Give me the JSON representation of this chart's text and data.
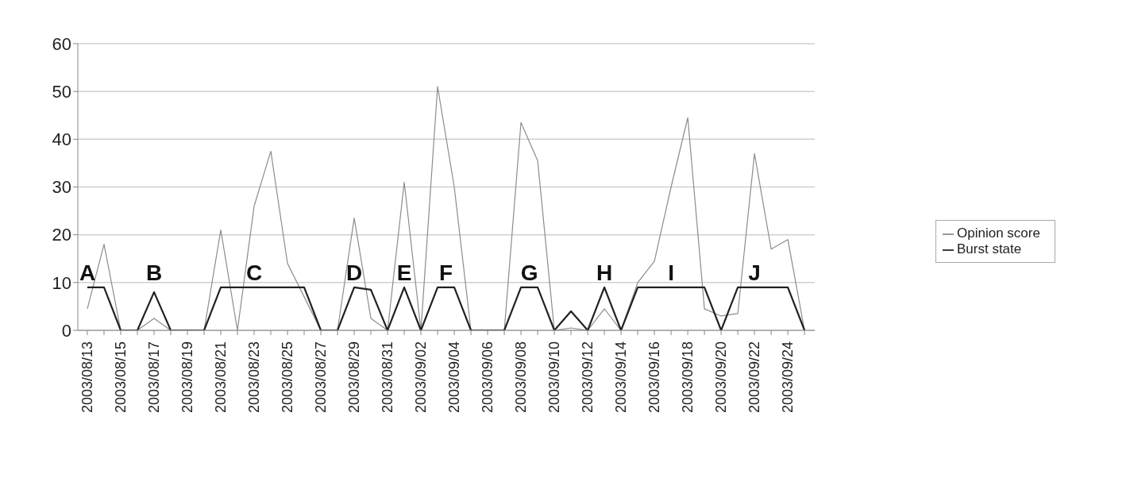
{
  "chart_data": {
    "type": "line",
    "categories": [
      "2003/08/13",
      null,
      "2003/08/15",
      null,
      "2003/08/17",
      null,
      "2003/08/19",
      null,
      "2003/08/21",
      null,
      "2003/08/23",
      null,
      "2003/08/25",
      null,
      "2003/08/27",
      null,
      "2003/08/29",
      null,
      "2003/08/31",
      null,
      "2003/09/02",
      null,
      "2003/09/04",
      null,
      "2003/09/06",
      null,
      "2003/09/08",
      null,
      "2003/09/10",
      null,
      "2003/09/12",
      null,
      "2003/09/14",
      null,
      "2003/09/16",
      null,
      "2003/09/18",
      null,
      "2003/09/20",
      null,
      "2003/09/22",
      null,
      "2003/09/24",
      null
    ],
    "series": [
      {
        "name": "Opinion score",
        "color": "#8c8c8c",
        "values": [
          4.5,
          18,
          0,
          0,
          2.5,
          0,
          0,
          0,
          21,
          0,
          26,
          37.5,
          14,
          7,
          0,
          0,
          23.5,
          2.5,
          0,
          31,
          0,
          51,
          30,
          0,
          0,
          0,
          43.5,
          35.5,
          0,
          0.5,
          0,
          4.5,
          0,
          10,
          14.5,
          30,
          44.5,
          4.5,
          3,
          3.5,
          37,
          17,
          19,
          0
        ]
      },
      {
        "name": "Burst state",
        "color": "#222222",
        "values": [
          9,
          9,
          0,
          0,
          8,
          0,
          0,
          0,
          9,
          9,
          9,
          9,
          9,
          9,
          0,
          0,
          9,
          8.5,
          0,
          9,
          0,
          9,
          9,
          0,
          0,
          0,
          9,
          9,
          0,
          4,
          0,
          9,
          0,
          9,
          9,
          9,
          9,
          9,
          0,
          9,
          9,
          9,
          9,
          0
        ]
      }
    ],
    "ylim": [
      0,
      60
    ],
    "yticks": [
      0,
      10,
      20,
      30,
      40,
      50,
      60
    ],
    "grid": "y",
    "legend": "right",
    "marker": "none",
    "line_style": "solid",
    "annotations": [
      "A",
      "B",
      "C",
      "D",
      "E",
      "F",
      "G",
      "H",
      "I",
      "J"
    ]
  }
}
